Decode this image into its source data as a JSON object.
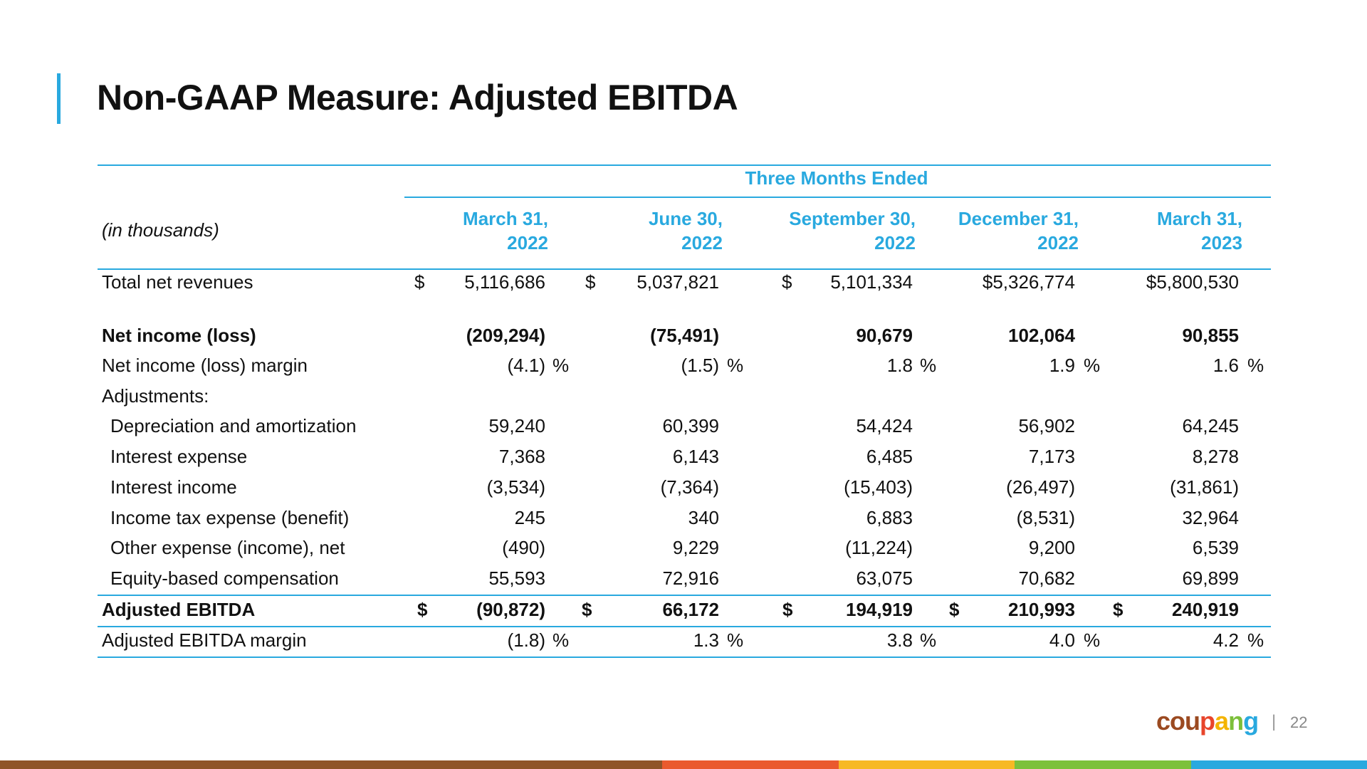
{
  "title": "Non-GAAP Measure: Adjusted EBITDA",
  "table": {
    "group_header": "Three Months Ended",
    "unit_label": "(in thousands)",
    "columns": [
      {
        "line1": "March 31,",
        "line2": "2022"
      },
      {
        "line1": "June 30,",
        "line2": "2022"
      },
      {
        "line1": "September 30,",
        "line2": "2022"
      },
      {
        "line1": "December 31,",
        "line2": "2022"
      },
      {
        "line1": "March 31,",
        "line2": "2023"
      }
    ],
    "rows": {
      "total_net_revenues": {
        "label": "Total net revenues",
        "values": [
          "5,116,686",
          "5,037,821",
          "5,101,334",
          "$5,326,774",
          "$5,800,530"
        ]
      },
      "net_income": {
        "label": "Net income (loss)",
        "values": [
          "(209,294)",
          "(75,491)",
          "90,679",
          "102,064",
          "90,855"
        ]
      },
      "net_income_margin": {
        "label": "Net income (loss) margin",
        "values": [
          "(4.1)",
          "(1.5)",
          "1.8",
          "1.9",
          "1.6"
        ]
      },
      "adjustments": {
        "label": "Adjustments:"
      },
      "depreciation": {
        "label": "Depreciation and amortization",
        "values": [
          "59,240",
          "60,399",
          "54,424",
          "56,902",
          "64,245"
        ]
      },
      "interest_expense": {
        "label": "Interest expense",
        "values": [
          "7,368",
          "6,143",
          "6,485",
          "7,173",
          "8,278"
        ]
      },
      "interest_income": {
        "label": "Interest income",
        "values": [
          "(3,534)",
          "(7,364)",
          "(15,403)",
          "(26,497)",
          "(31,861)"
        ]
      },
      "income_tax": {
        "label": "Income tax expense (benefit)",
        "values": [
          "245",
          "340",
          "6,883",
          "(8,531)",
          "32,964"
        ]
      },
      "other_expense": {
        "label": "Other expense (income), net",
        "values": [
          "(490)",
          "9,229",
          "(11,224)",
          "9,200",
          "6,539"
        ]
      },
      "equity_comp": {
        "label": "Equity-based compensation",
        "values": [
          "55,593",
          "72,916",
          "63,075",
          "70,682",
          "69,899"
        ]
      },
      "adjusted_ebitda": {
        "label": "Adjusted EBITDA",
        "values": [
          "(90,872)",
          "66,172",
          "194,919",
          "210,993",
          "240,919"
        ]
      },
      "adjusted_ebitda_margin": {
        "label": "Adjusted EBITDA margin",
        "values": [
          "(1.8)",
          "1.3",
          "3.8",
          "4.0",
          "4.2"
        ]
      }
    },
    "currency_symbol": "$",
    "percent_symbol": "%"
  },
  "footer": {
    "logo_letters": [
      "c",
      "o",
      "u",
      "p",
      "a",
      "n",
      "g"
    ],
    "logo_colors": [
      "#9b4a21",
      "#9b4a21",
      "#9b4a21",
      "#e8452c",
      "#f4b400",
      "#7cbf3a",
      "#29a9df"
    ],
    "separator": "|",
    "page_number": "22"
  },
  "colors": {
    "accent": "#29a9df",
    "stripe": [
      "#8f5428",
      "#ea5a2e",
      "#f7b924",
      "#7cc13b",
      "#29a9df"
    ]
  }
}
